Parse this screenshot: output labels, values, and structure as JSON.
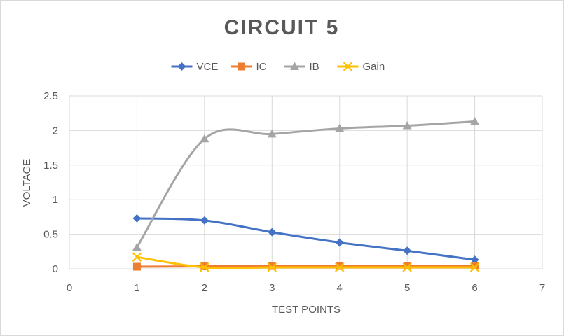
{
  "chart_data": {
    "type": "scatter",
    "title": "CIRCUIT 5",
    "xlabel": "TEST POINTS",
    "ylabel": "VOLTAGE",
    "xlim": [
      0,
      7
    ],
    "ylim": [
      0,
      2.5
    ],
    "x_ticks": [
      "0",
      "1",
      "2",
      "3",
      "4",
      "5",
      "6",
      "7"
    ],
    "y_ticks": [
      "0",
      "0.5",
      "1",
      "1.5",
      "2",
      "2.5"
    ],
    "grid": true,
    "legend_position": "top",
    "smooth_lines": true,
    "series": [
      {
        "name": "VCE",
        "color": "#4472c4",
        "marker": "diamond",
        "x": [
          1,
          2,
          3,
          4,
          5,
          6
        ],
        "y": [
          0.73,
          0.7,
          0.53,
          0.38,
          0.26,
          0.13
        ]
      },
      {
        "name": "IC",
        "color": "#ed7d31",
        "marker": "square",
        "x": [
          1,
          2,
          3,
          4,
          5,
          6
        ],
        "y": [
          0.03,
          0.035,
          0.04,
          0.04,
          0.045,
          0.045
        ]
      },
      {
        "name": "IB",
        "color": "#a5a5a5",
        "marker": "triangle",
        "x": [
          1,
          2,
          3,
          4,
          5,
          6
        ],
        "y": [
          0.31,
          1.88,
          1.95,
          2.03,
          2.07,
          2.13
        ]
      },
      {
        "name": "Gain",
        "color": "#ffc000",
        "marker": "x",
        "x": [
          1,
          2,
          3,
          4,
          5,
          6
        ],
        "y": [
          0.17,
          0.02,
          0.02,
          0.02,
          0.02,
          0.02
        ]
      }
    ]
  }
}
